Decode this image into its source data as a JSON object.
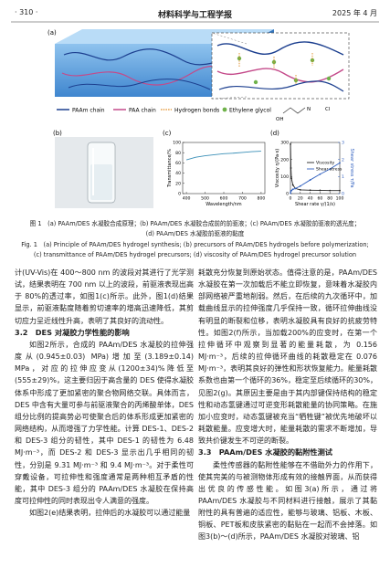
{
  "header": {
    "page": "· 310 ·",
    "journal": "材料科学与工程学报",
    "date": "2025 年 4 月"
  },
  "figure": {
    "panels": [
      "(a)",
      "(b)",
      "(c)",
      "(d)"
    ],
    "legend": [
      "PAAm chain",
      "PAA chain",
      "Hydrogen bonds",
      "Ethylene glycol"
    ],
    "chem": [
      "OH",
      "N",
      "Cl"
    ],
    "caption_cn": [
      "图 1　(a) PAAm/DES 水凝胶合成原理；(b) PAAm/DES 水凝胶合成前的前驱液；(c) PAAm/DES 水凝胶前驱液的透光度；",
      "(d) PAAm/DES 水凝胶前驱液的黏度"
    ],
    "caption_en": [
      "Fig. 1　(a) Principle of PAAm/DES hydrogel synthesis; (b) precursors of PAAm/DES hydrogels before polymerization;",
      "(c) transmittance of PAAm/DES hydrogel precursors; (d) viscosity of PAAm/DES hydrogel precursor solution"
    ]
  },
  "chart_data": [
    {
      "type": "line",
      "xlabel": "Wavelength/nm",
      "ylabel": "Transmittance/%",
      "x": [
        400,
        450,
        500,
        550,
        600,
        650,
        700,
        750,
        800
      ],
      "values": [
        66,
        71,
        74,
        76,
        78,
        79,
        80.5,
        82,
        83
      ],
      "color": "#3a8fb7",
      "xlim": [
        380,
        820
      ],
      "ylim": [
        0,
        100
      ],
      "xticks": [
        400,
        500,
        600,
        700,
        800
      ],
      "yticks": [
        0,
        20,
        40,
        60,
        80,
        100
      ]
    },
    {
      "type": "line",
      "xlabel": "Shear rate γ/(1/s)",
      "ylabel": "Viscosity η/(Pa·s)",
      "y2label": "Shear stress τ/Pa",
      "x": [
        0.1,
        1,
        2,
        5,
        10,
        20,
        40,
        60,
        80,
        100
      ],
      "series": [
        {
          "name": "Viscosity",
          "color": "#222222",
          "values": [
            290,
            150,
            90,
            50,
            30,
            22,
            20,
            19,
            18,
            18
          ]
        },
        {
          "name": "Shear stress",
          "color": "#2f5fbf",
          "axis": "y2",
          "values": [
            0.03,
            0.15,
            0.18,
            0.25,
            0.3,
            0.44,
            0.8,
            1.14,
            1.44,
            1.8
          ]
        }
      ],
      "xlim": [
        0,
        100
      ],
      "ylim": [
        0,
        300
      ],
      "y2lim": [
        0,
        3
      ],
      "xticks": [
        0,
        20,
        40,
        60,
        80,
        100
      ],
      "yticks": [
        0,
        100,
        200,
        300
      ],
      "y2ticks": [
        0,
        1,
        2,
        3
      ]
    }
  ],
  "body": {
    "left": [
      {
        "kind": "cont",
        "text": "计(UV-Vis)在 400～800 nm 的波段对其进行了光学测试，结果表明在 700 nm 以上的波段，前驱液表现出高于 80%的透过率，如图1(c)所示。此外，图1(d)结果显示，前驱液黏度随着剪切速率的增高迅速降低，其剪切应力呈近线性升高，表明了其良好的流动性。"
      },
      {
        "kind": "h",
        "text": "3.2　DES 对凝胶力学性能的影响"
      },
      {
        "kind": "p",
        "text": "如图2所示，合成的 PAAm/DES 水凝胶的拉伸强度从(0.945±0.03) MPa)增加至(3.189±0.14) MPa，对应的拉伸应变从(1200±34)%降低至(555±29)%，这主要归因于高含量的 DES 使得水凝胶体系中形成了更加紧密的聚合物网络交联。具体而言，DES 中含有大量可参与前驱液聚合的丙烯酸单体，DES 组分比例的提高势必可使聚合后的体系形成更加紧密的网络结构，从而增强了力学性能。计算 DES-1、DES-2 和 DES-3 组分的韧性，其中 DES-1 的韧性为 6.48 MJ·m⁻³，而 DES-2 和 DES-3 显示出几乎相同的韧性，分别是 9.31 MJ·m⁻³ 和 9.4 MJ·m⁻³。对于柔性可穿戴设备，可拉伸性和强度通常是两种相互矛盾的性能，其中 DES-3 组分的 PAAm/DES 水凝胶在保持高度可拉伸性的同时表现出令人满意的强度。"
      },
      {
        "kind": "p",
        "text": "如图2(e)结果表明，拉伸后的水凝胶可以通过能量"
      }
    ],
    "right": [
      {
        "kind": "cont",
        "text": "耗散充分恢复到原始状态。值得注意的是，PAAm/DES 水凝胶在第一次加载后不能立即恢复，意味着水凝胶内部网络被严重地削弱。然后，在后续的九次循环中，加载曲线显示的拉伸强度几乎保持一致，循环拉伸曲线没有明显的断裂和位移，表明水凝胶具有良好的抗疲劳特性。如图2(f)所示，当加载200%的应变时，在第一个拉伸循环中观察到显著的能量耗散，为 0.156 MJ·m⁻³，后续的拉伸循环曲线的耗散稳定在 0.076 MJ·m⁻³，表明其良好的弹性和形状恢复能力。能量耗散系数也由第一个循环的36%，稳定至后续循环的30%，见图2(g)。其原因主要是由于其内部键保持结构的稳定性和动态氢键通过可逆变形耗散能量的协同策略。在施加小应变时，动态氢键被充当“牺牲键”被优先地破坏以耗散能量。应变增大时，能量耗散的需求不断增加，导致共价键发生不可逆的断裂。"
      },
      {
        "kind": "h",
        "text": "3.3　PAAm/DES 水凝胶的黏附性测试"
      },
      {
        "kind": "p",
        "text": "柔性传感器的黏附性能够在不借助外力的作用下，使其完美的与被测物体形成有效的接触界面，从而获得出优良的传感性能。如图3(a)所示，通过将 PAAm/DES 水凝胶与不同材料进行接触，展示了其黏附性的具有普遍的适应性，能够与玻璃、铝板、木板、铜板、PET板和皮肤紧密的黏贴在一起而不会掉落。如图3(b)～(d)所示，PAAm/DES 水凝胶对玻璃、铝"
      }
    ]
  }
}
